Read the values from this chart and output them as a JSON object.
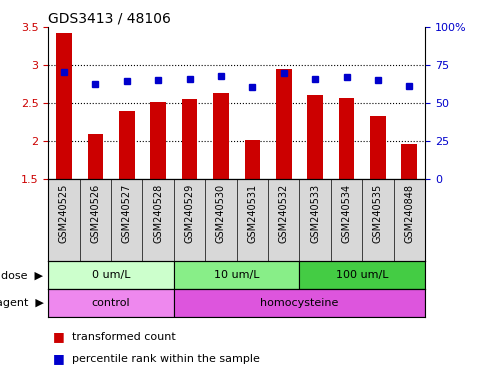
{
  "title": "GDS3413 / 48106",
  "samples": [
    "GSM240525",
    "GSM240526",
    "GSM240527",
    "GSM240528",
    "GSM240529",
    "GSM240530",
    "GSM240531",
    "GSM240532",
    "GSM240533",
    "GSM240534",
    "GSM240535",
    "GSM240848"
  ],
  "transformed_count": [
    3.42,
    2.1,
    2.4,
    2.52,
    2.55,
    2.63,
    2.02,
    2.95,
    2.61,
    2.57,
    2.33,
    1.97
  ],
  "percentile_rank_pct": [
    70.5,
    62.5,
    64.5,
    65.0,
    66.0,
    68.0,
    60.5,
    70.0,
    66.0,
    67.0,
    65.0,
    61.0
  ],
  "ylim_left": [
    1.5,
    3.5
  ],
  "ylim_right": [
    0,
    100
  ],
  "yticks_left": [
    1.5,
    2.0,
    2.5,
    3.0,
    3.5
  ],
  "ytick_labels_left": [
    "1.5",
    "2",
    "2.5",
    "3",
    "3.5"
  ],
  "yticks_right": [
    0,
    25,
    50,
    75,
    100
  ],
  "ytick_labels_right": [
    "0",
    "25",
    "50",
    "75",
    "100%"
  ],
  "bar_color": "#cc0000",
  "dot_color": "#0000cc",
  "bar_bottom": 1.5,
  "dose_groups": [
    {
      "label": "0 um/L",
      "start": 0,
      "end": 4,
      "color": "#ccffcc"
    },
    {
      "label": "10 um/L",
      "start": 4,
      "end": 8,
      "color": "#88ee88"
    },
    {
      "label": "100 um/L",
      "start": 8,
      "end": 12,
      "color": "#44cc44"
    }
  ],
  "agent_groups": [
    {
      "label": "control",
      "start": 0,
      "end": 4,
      "color": "#ee88ee"
    },
    {
      "label": "homocysteine",
      "start": 4,
      "end": 12,
      "color": "#dd55dd"
    }
  ],
  "legend_bar_label": "transformed count",
  "legend_dot_label": "percentile rank within the sample",
  "xtick_bg_color": "#d8d8d8",
  "spine_color": "#000000"
}
